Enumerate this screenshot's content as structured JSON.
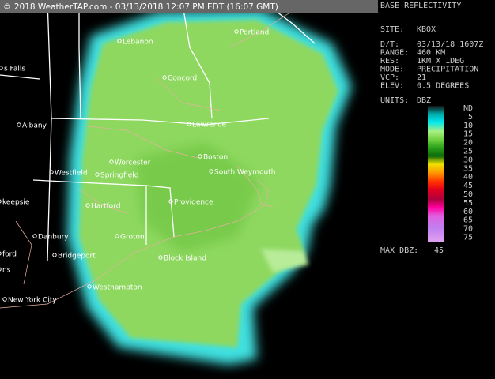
{
  "header": {
    "text": "© 2018 WeatherTAP.com - 03/13/2018 12:07 PM EDT (16:07 GMT)"
  },
  "panel": {
    "title": "BASE REFLECTIVITY",
    "fields": [
      [
        "SITE:",
        "KBOX"
      ]
    ],
    "details": [
      [
        "D/T:",
        "03/13/18 1607Z"
      ],
      [
        "RANGE:",
        "460 KM"
      ],
      [
        "RES:",
        "1KM X 1DEG"
      ],
      [
        "MODE:",
        "PRECIPITATION"
      ],
      [
        "VCP:",
        "21"
      ],
      [
        "ELEV:",
        "0.5 DEGREES"
      ]
    ],
    "units": [
      "UNITS:",
      "DBZ"
    ],
    "legend": [
      "ND",
      5,
      10,
      15,
      20,
      25,
      30,
      35,
      40,
      45,
      50,
      55,
      60,
      65,
      70,
      75
    ],
    "max": [
      "MAX DBZ:",
      45
    ]
  },
  "map": {
    "cities": [
      "Lebanon",
      "Portland",
      "Concord",
      "s Falls",
      "Albany",
      "Lawrence",
      "Boston",
      "Worcester",
      "Westfield",
      "Springfield",
      "South Weymouth",
      "keepsie",
      "Hartford",
      "Providence",
      "Danbury",
      "Groton",
      "Block Island",
      "Bridgeport",
      "ford",
      "Westhampton",
      "ns",
      "New York City"
    ]
  }
}
